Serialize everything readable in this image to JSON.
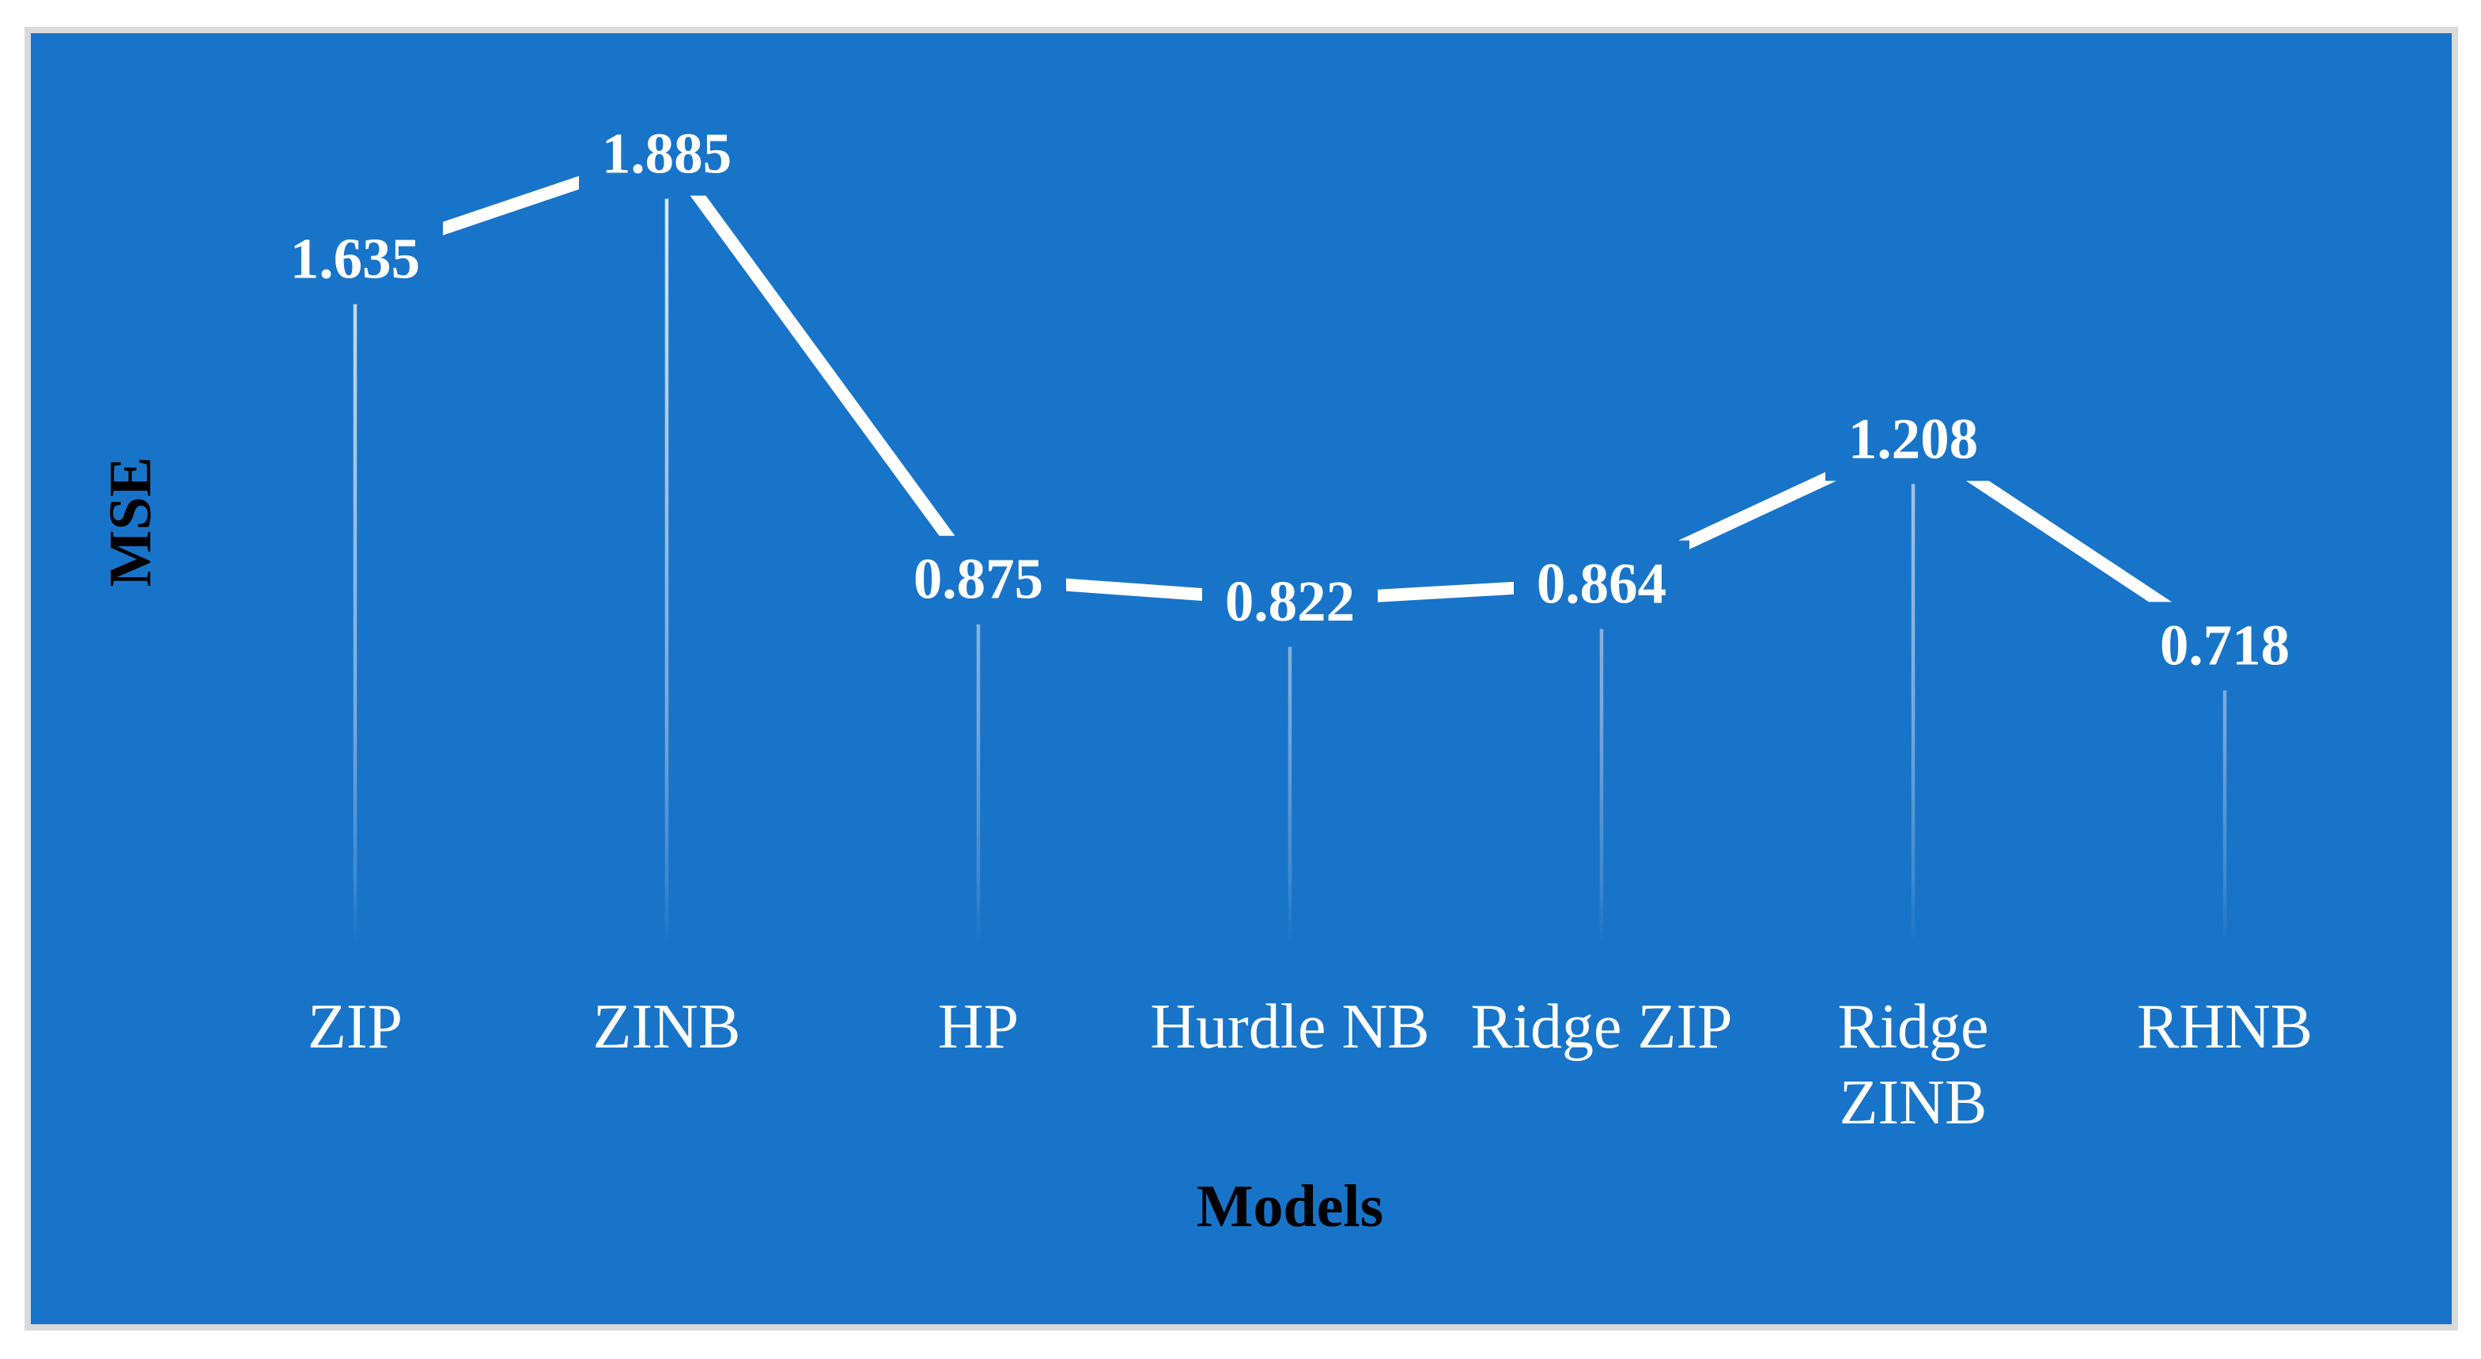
{
  "chart_data": {
    "type": "line",
    "title": "",
    "categories": [
      "ZIP",
      "ZINB",
      "HP",
      "Hurdle NB",
      "Ridge ZIP",
      "Ridge ZINB",
      "RHNB"
    ],
    "category_lines": [
      [
        "ZIP"
      ],
      [
        "ZINB"
      ],
      [
        "HP"
      ],
      [
        "Hurdle NB"
      ],
      [
        "Ridge ZIP"
      ],
      [
        "Ridge",
        "ZINB"
      ],
      [
        "RHNB"
      ]
    ],
    "series": [
      {
        "name": "MSE",
        "values": [
          1.635,
          1.885,
          0.875,
          0.822,
          0.864,
          1.208,
          0.718
        ]
      }
    ],
    "data_labels": [
      "1.635",
      "1.885",
      "0.875",
      "0.822",
      "0.864",
      "1.208",
      "0.718"
    ],
    "xlabel": "Models",
    "ylabel": "MSE",
    "ylim": [
      0,
      2.25
    ],
    "grid": false,
    "legend": "none",
    "marker": "none",
    "drop_lines": true,
    "colors": {
      "page_background": "#FFFFFF",
      "plot_background": "#1874C9",
      "border": "#D9D9D9",
      "line": "#FFFFFF",
      "data_label_text": "#FFFFFF",
      "category_label_text": "#FFFFFF",
      "axis_title_text": "#000000",
      "drop_line_top": "#F0F5FB",
      "drop_line_mid": "#C3D5EC"
    }
  }
}
